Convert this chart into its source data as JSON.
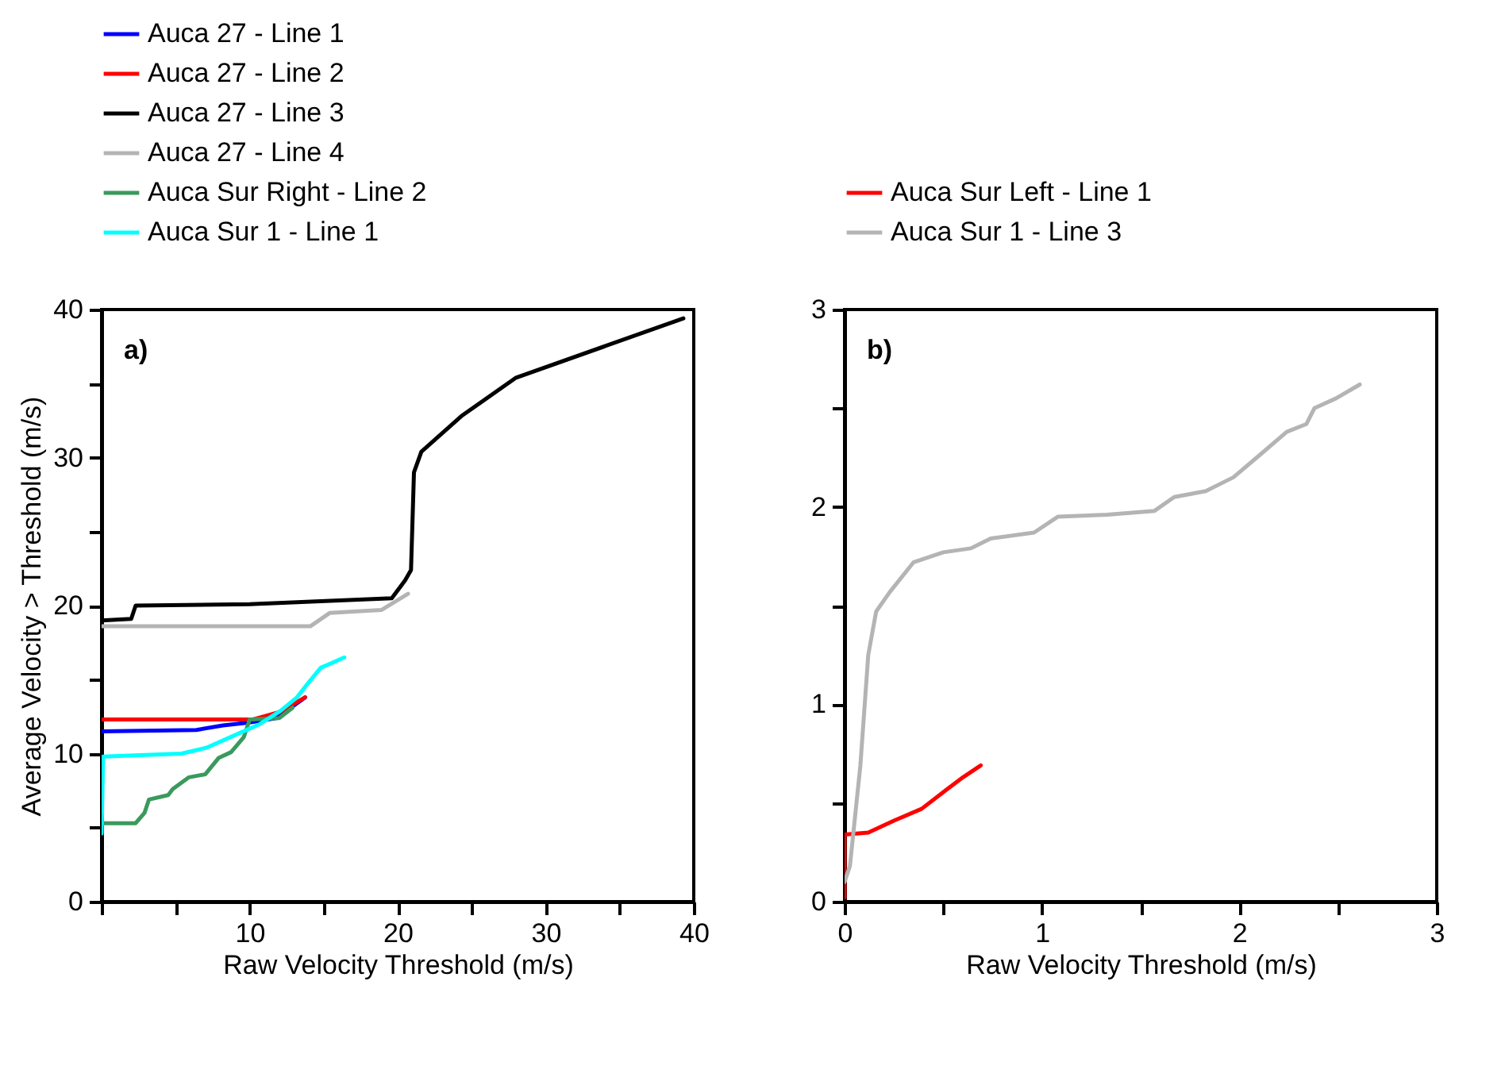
{
  "chart_data": [
    {
      "type": "line",
      "xlabel": "Raw Velocity Threshold (m/s)",
      "ylabel": "Average Velocity > Threshold (m/s)",
      "annotations": [
        "a)"
      ],
      "legend": "top left",
      "grid": false,
      "xlim": [
        0,
        40
      ],
      "ylim": [
        0,
        40
      ],
      "xticks": [
        {
          "value": 0,
          "label": null
        },
        {
          "value": 5,
          "label": null
        },
        10,
        {
          "value": 15,
          "label": null
        },
        20,
        {
          "value": 25,
          "label": null
        },
        30,
        {
          "value": 35,
          "label": null
        },
        40
      ],
      "yticks": [
        0,
        {
          "value": 5,
          "label": null
        },
        10,
        {
          "value": 15,
          "label": null
        },
        20,
        {
          "value": 25,
          "label": null
        },
        30,
        {
          "value": 35,
          "label": null
        },
        40
      ],
      "series": [
        {
          "name": "Auca 27 - Line 1",
          "color": "#0000ff",
          "x": [
            0,
            6.4,
            8.2,
            10,
            11.8,
            13.75
          ],
          "values": [
            11.5,
            11.6,
            11.9,
            12.1,
            12.4,
            13.8
          ]
        },
        {
          "name": "Auca 27 - Line 2",
          "color": "#ff0000",
          "x": [
            0,
            10.2,
            12,
            13.75
          ],
          "values": [
            12.3,
            12.3,
            12.8,
            13.8
          ]
        },
        {
          "name": "Auca 27 - Line 3",
          "color": "#000000",
          "x": [
            0,
            2,
            2.3,
            10,
            19.6,
            20.5,
            20.9,
            21.1,
            21.6,
            24.3,
            28,
            39.3
          ],
          "values": [
            19,
            19.1,
            20,
            20.1,
            20.5,
            21.7,
            22.4,
            29,
            30.4,
            32.8,
            35.4,
            39.4
          ]
        },
        {
          "name": "Auca 27 - Line 4",
          "color": "#b4b4b4",
          "x": [
            0,
            14.1,
            15.4,
            18.9,
            20.7
          ],
          "values": [
            18.6,
            18.6,
            19.5,
            19.7,
            20.8
          ]
        },
        {
          "name": "Auca Sur Right - Line 2",
          "color": "#3a9a5c",
          "x": [
            0,
            2.3,
            2.9,
            3.2,
            4.5,
            4.8,
            5.9,
            7,
            7.9,
            8.75,
            9.6,
            10,
            12,
            12.9
          ],
          "values": [
            5.3,
            5.3,
            6,
            6.9,
            7.2,
            7.6,
            8.4,
            8.6,
            9.7,
            10.1,
            11.1,
            12.3,
            12.4,
            13.1
          ]
        },
        {
          "name": "Auca Sur 1 - Line 1",
          "color": "#00ffff",
          "x": [
            0,
            0.1,
            5.4,
            7.1,
            8.9,
            10.7,
            12.1,
            13.2,
            13.9,
            14.8,
            15.5,
            16.4
          ],
          "values": [
            4.6,
            9.8,
            10,
            10.4,
            11.2,
            12,
            12.9,
            13.8,
            14.7,
            15.8,
            16.1,
            16.5
          ]
        }
      ]
    },
    {
      "type": "line",
      "xlabel": "Raw Velocity Threshold (m/s)",
      "annotations": [
        "b)"
      ],
      "legend": "top left",
      "grid": false,
      "xlim": [
        0,
        3
      ],
      "ylim": [
        0,
        3
      ],
      "xticks": [
        0,
        {
          "value": 0.5,
          "label": null
        },
        1,
        {
          "value": 1.5,
          "label": null
        },
        2,
        {
          "value": 2.5,
          "label": null
        },
        3
      ],
      "yticks": [
        0,
        {
          "value": 0.5,
          "label": null
        },
        1,
        {
          "value": 1.5,
          "label": null
        },
        2,
        {
          "value": 2.5,
          "label": null
        },
        3
      ],
      "series": [
        {
          "name": "Auca Sur Left - Line 1",
          "color": "#ff0000",
          "x": [
            0,
            0,
            0.12,
            0.25,
            0.39,
            0.52,
            0.6,
            0.69
          ],
          "values": [
            0.02,
            0.34,
            0.35,
            0.41,
            0.47,
            0.57,
            0.63,
            0.69
          ]
        },
        {
          "name": "Auca Sur 1 - Line 3",
          "color": "#b4b4b4",
          "x": [
            0,
            0.027,
            0.08,
            0.12,
            0.16,
            0.23,
            0.35,
            0.5,
            0.64,
            0.74,
            0.96,
            1.08,
            1.33,
            1.57,
            1.67,
            1.83,
            1.97,
            2.1,
            2.24,
            2.34,
            2.38,
            2.49,
            2.61
          ],
          "values": [
            0.1,
            0.18,
            0.69,
            1.25,
            1.47,
            1.57,
            1.72,
            1.77,
            1.79,
            1.84,
            1.87,
            1.95,
            1.96,
            1.98,
            2.05,
            2.08,
            2.15,
            2.26,
            2.38,
            2.42,
            2.5,
            2.55,
            2.62
          ]
        }
      ]
    }
  ]
}
